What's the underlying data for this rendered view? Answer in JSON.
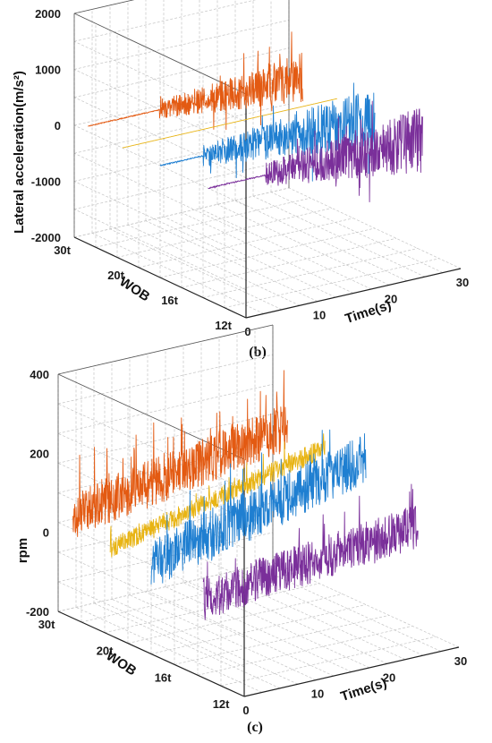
{
  "colors": {
    "series": [
      "#e35a12",
      "#e8b414",
      "#1f7fd1",
      "#7a2f9a"
    ],
    "grid": "#c4c4c4",
    "text": "#1a1a1a"
  },
  "chart_data": [
    {
      "type": "line",
      "panel_label": "(b)",
      "zlabel": "Lateral acceleration(m/s²)",
      "xlabel": "Time(s)",
      "ylabel": "WOB",
      "zlim": [
        -2000,
        2000
      ],
      "xlim": [
        0,
        30
      ],
      "z_ticks": [
        "2000",
        "1000",
        "0",
        "-1000",
        "-2000"
      ],
      "x_ticks": [
        "0",
        "10",
        "20",
        "30"
      ],
      "wob_ticks": [
        "30t",
        "20t",
        "16t",
        "12t"
      ],
      "grid": true,
      "series": [
        {
          "wob": "30t",
          "color": "#e35a12",
          "time_range": [
            0,
            30
          ],
          "quiet_until": 10,
          "center": 100,
          "noise_amplitude": 900
        },
        {
          "wob": "20t",
          "color": "#e8b414",
          "time_range": [
            0,
            30
          ],
          "quiet_until": 30,
          "center": 0,
          "noise_amplitude": 30
        },
        {
          "wob": "16t",
          "color": "#1f7fd1",
          "time_range": [
            0,
            30
          ],
          "quiet_until": 6,
          "center": 0,
          "noise_amplitude": 1100
        },
        {
          "wob": "12t",
          "color": "#7a2f9a",
          "time_range": [
            0,
            30
          ],
          "quiet_until": 8,
          "center": 0,
          "noise_amplitude": 1200
        }
      ]
    },
    {
      "type": "line",
      "panel_label": "(c)",
      "zlabel": "rpm",
      "xlabel": "Time(s)",
      "ylabel": "WOB",
      "zlim": [
        -200,
        400
      ],
      "xlim": [
        0,
        30
      ],
      "z_ticks": [
        "400",
        "200",
        "0",
        "-200"
      ],
      "x_ticks": [
        "0",
        "10",
        "20",
        "30"
      ],
      "wob_ticks": [
        "30t",
        "20t",
        "16t",
        "12t"
      ],
      "grid": true,
      "series": [
        {
          "wob": "30t",
          "color": "#e35a12",
          "time_range": [
            0,
            30
          ],
          "start": 60,
          "end": 160,
          "noise_amplitude": 120
        },
        {
          "wob": "20t",
          "color": "#e8b414",
          "time_range": [
            0,
            30
          ],
          "start": 20,
          "end": 150,
          "noise_amplitude": 50
        },
        {
          "wob": "16t",
          "color": "#1f7fd1",
          "time_range": [
            0,
            30
          ],
          "start": 30,
          "end": 170,
          "noise_amplitude": 130
        },
        {
          "wob": "12t",
          "color": "#7a2f9a",
          "time_range": [
            0,
            30
          ],
          "start": 0,
          "end": 60,
          "noise_amplitude": 110
        }
      ]
    }
  ]
}
